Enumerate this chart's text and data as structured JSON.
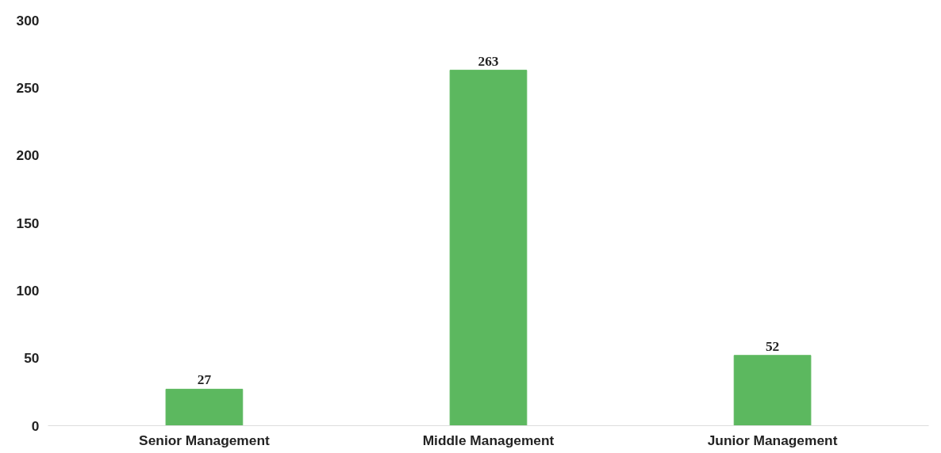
{
  "chart_data": {
    "type": "bar",
    "categories": [
      "Senior Management",
      "Middle Management",
      "Junior Management"
    ],
    "values": [
      27,
      263,
      52
    ],
    "color": "#5cb85f",
    "ylim": [
      0,
      300
    ],
    "yticks": [
      0,
      50,
      100,
      150,
      200,
      250,
      300
    ],
    "grid": false,
    "data_labels": true
  }
}
